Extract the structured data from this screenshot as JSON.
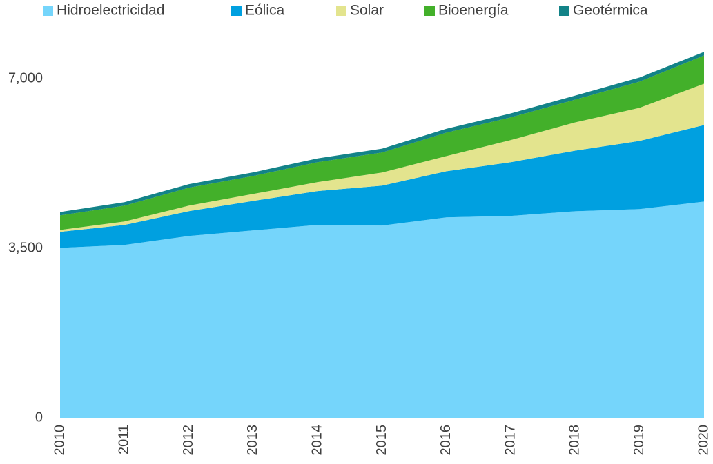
{
  "chart_data": {
    "type": "stacked_area",
    "categories": [
      "2010",
      "2011",
      "2012",
      "2013",
      "2014",
      "2015",
      "2016",
      "2017",
      "2018",
      "2019",
      "2020"
    ],
    "series": [
      {
        "name": "Hidroelectricidad",
        "color": "#75d5fb",
        "values": [
          3510,
          3570,
          3755,
          3870,
          3985,
          3970,
          4140,
          4170,
          4265,
          4310,
          4465
        ]
      },
      {
        "name": "Eólica",
        "color": "#00a0e0",
        "values": [
          330,
          413,
          512,
          610,
          697,
          825,
          952,
          1109,
          1252,
          1408,
          1580
        ]
      },
      {
        "name": "Solar",
        "color": "#e3e48e",
        "values": [
          40,
          71,
          114,
          143,
          185,
          270,
          313,
          456,
          583,
          683,
          853
        ]
      },
      {
        "name": "Bioenergía",
        "color": "#43b02a",
        "values": [
          300,
          327,
          370,
          370,
          412,
          413,
          484,
          469,
          470,
          541,
          583
        ]
      },
      {
        "name": "Geotérmica",
        "color": "#138388",
        "values": [
          70,
          72,
          74,
          76,
          78,
          80,
          80,
          82,
          84,
          86,
          75
        ]
      }
    ],
    "ylim": [
      0,
      7560
    ],
    "yticks": [
      0,
      {
        "value": 3500,
        "label": "3,500"
      },
      {
        "value": 7000,
        "label": "7,000"
      }
    ],
    "legend": "top"
  }
}
